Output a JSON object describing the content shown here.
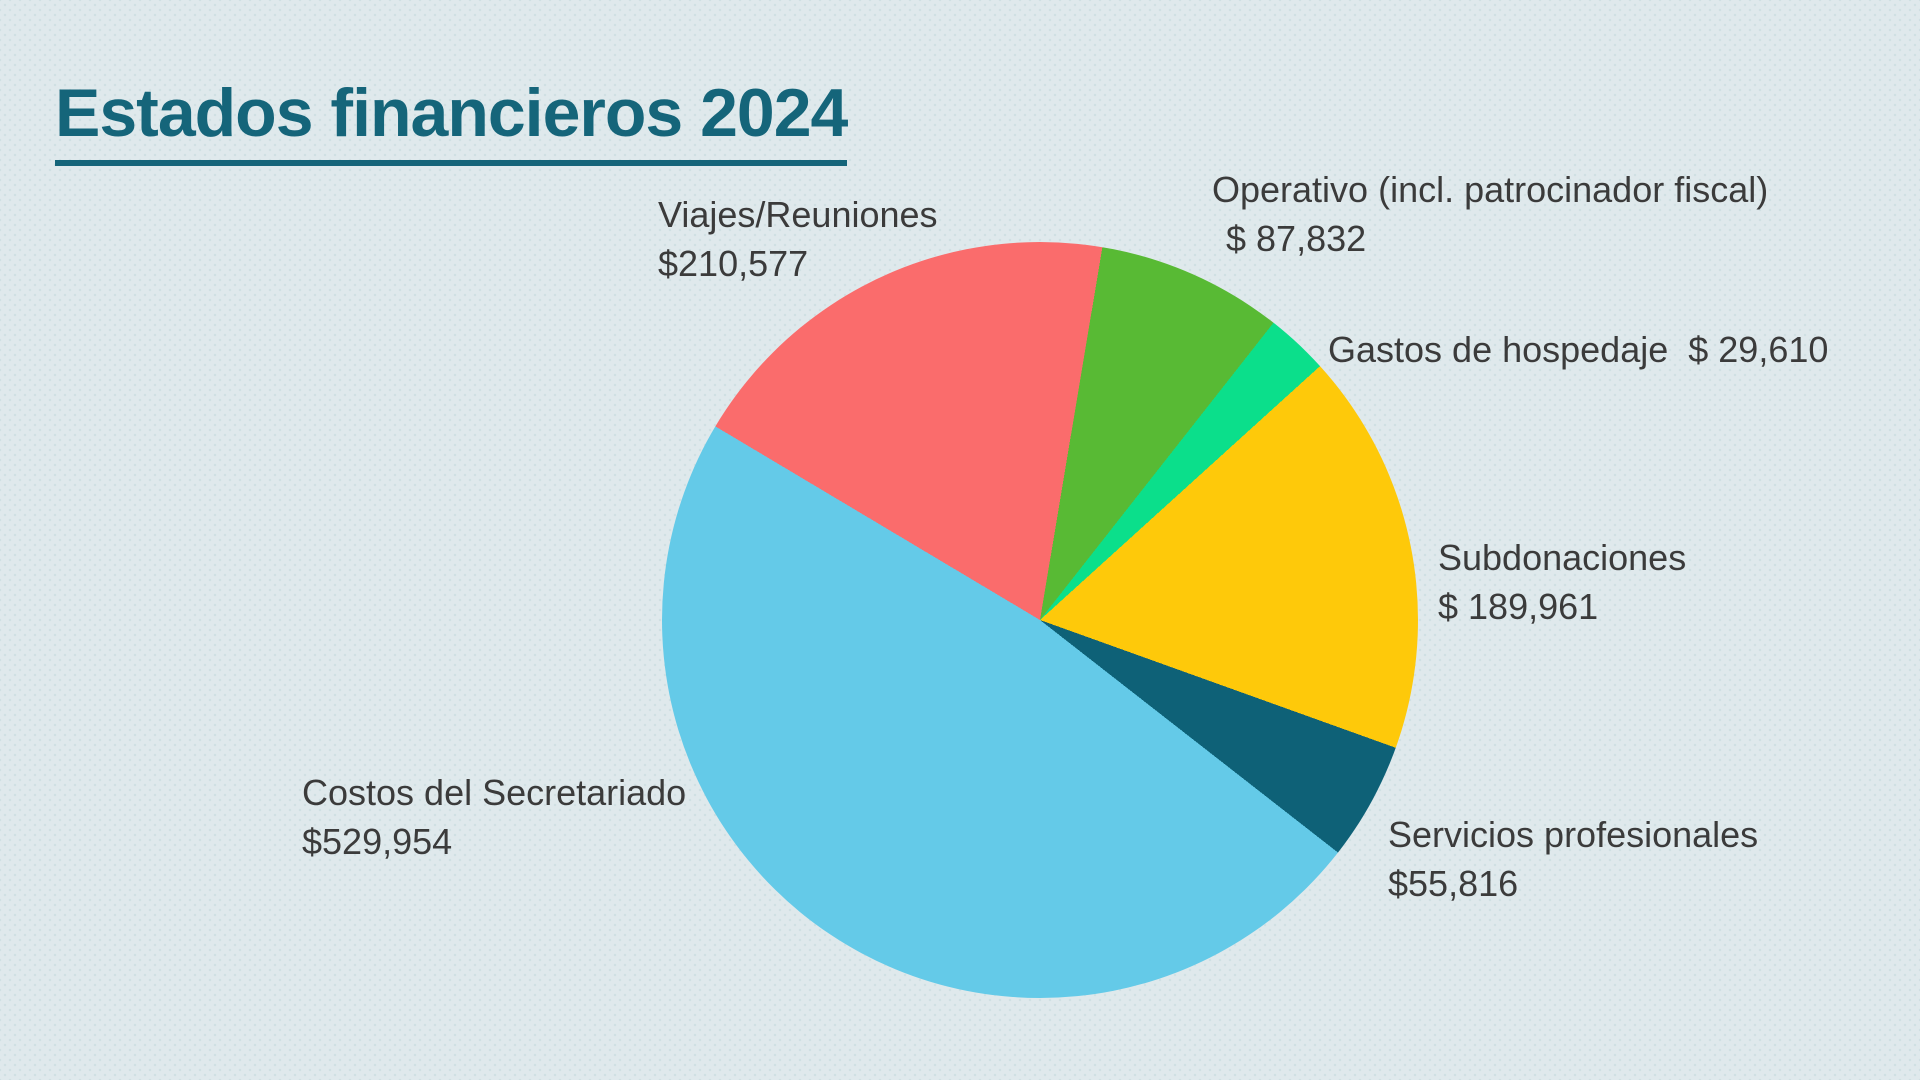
{
  "title": "Estados financieros 2024",
  "colors": {
    "background": "#dfe9ec",
    "background_dot": "#cfe0e3",
    "title": "#15657a",
    "label_text": "#3b3b3b"
  },
  "chart_data": {
    "type": "pie",
    "title": "Estados financieros 2024",
    "total": 1103750,
    "start_angle_deg": 9.5,
    "direction": "clockwise",
    "legend_position": "labels-around-pie",
    "slices": [
      {
        "label": "Operativo (incl. patrocinador fiscal)",
        "value": 87832,
        "display_value": "$ 87,832",
        "color": "#58ba34"
      },
      {
        "label": "Gastos de hospedaje",
        "value": 29610,
        "display_value": "$ 29,610",
        "color": "#0bdf8b"
      },
      {
        "label": "Subdonaciones",
        "value": 189961,
        "display_value": "$ 189,961",
        "color": "#fec90a"
      },
      {
        "label": "Servicios profesionales",
        "value": 55816,
        "display_value": "$55,816",
        "color": "#0e6177"
      },
      {
        "label": "Costos del Secretariado",
        "value": 529954,
        "display_value": "$529,954",
        "color": "#64cae8"
      },
      {
        "label": "Viajes/Reuniones",
        "value": 210577,
        "display_value": "$210,577",
        "color": "#fa6c6c"
      }
    ]
  }
}
